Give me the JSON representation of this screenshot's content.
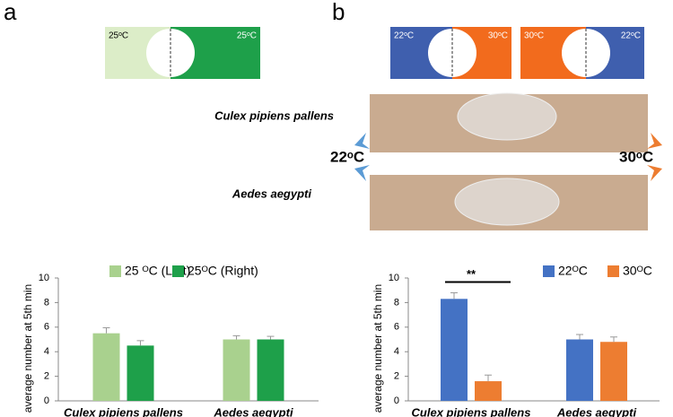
{
  "panel_labels": [
    "a",
    "b"
  ],
  "diagram_a": [
    "25ᵒC",
    "25ᵒC"
  ],
  "diagram_b": [
    "22ᵒC",
    "30ᵒC",
    "30ᵒC",
    "22ᵒC"
  ],
  "photo": {
    "species": [
      "Culex pipiens pallens",
      "Aedes aegypti"
    ],
    "temps": [
      "22ᵒC",
      "30ᵒC"
    ]
  },
  "chart_data": [
    {
      "type": "bar",
      "y_label": "average number at 5th min",
      "categories": [
        "Culex pipiens pallens",
        "Aedes aegypti"
      ],
      "series": [
        {
          "name": "25 ᴼC (Left)",
          "color": "#a9d18e",
          "values": [
            5.5,
            5.0
          ],
          "errors": [
            0.45,
            0.3
          ]
        },
        {
          "name": "25ᴼC (Right)",
          "color": "#1ea04a",
          "values": [
            4.5,
            5.0
          ],
          "errors": [
            0.4,
            0.25
          ]
        }
      ],
      "ylim": [
        0,
        10
      ],
      "yticks": [
        0,
        2,
        4,
        6,
        8,
        10
      ]
    },
    {
      "type": "bar",
      "y_label": "average number at 5th min",
      "categories": [
        "Culex pipiens pallens",
        "Aedes aegypti"
      ],
      "series": [
        {
          "name": "22ᴼC",
          "color": "#4472c4",
          "values": [
            8.3,
            5.0
          ],
          "errors": [
            0.5,
            0.4
          ]
        },
        {
          "name": "30ᴼC",
          "color": "#ed7d31",
          "values": [
            1.6,
            4.8
          ],
          "errors": [
            0.5,
            0.4
          ]
        }
      ],
      "ylim": [
        0,
        10
      ],
      "yticks": [
        0,
        2,
        4,
        6,
        8,
        10
      ],
      "annotation": "**"
    }
  ]
}
